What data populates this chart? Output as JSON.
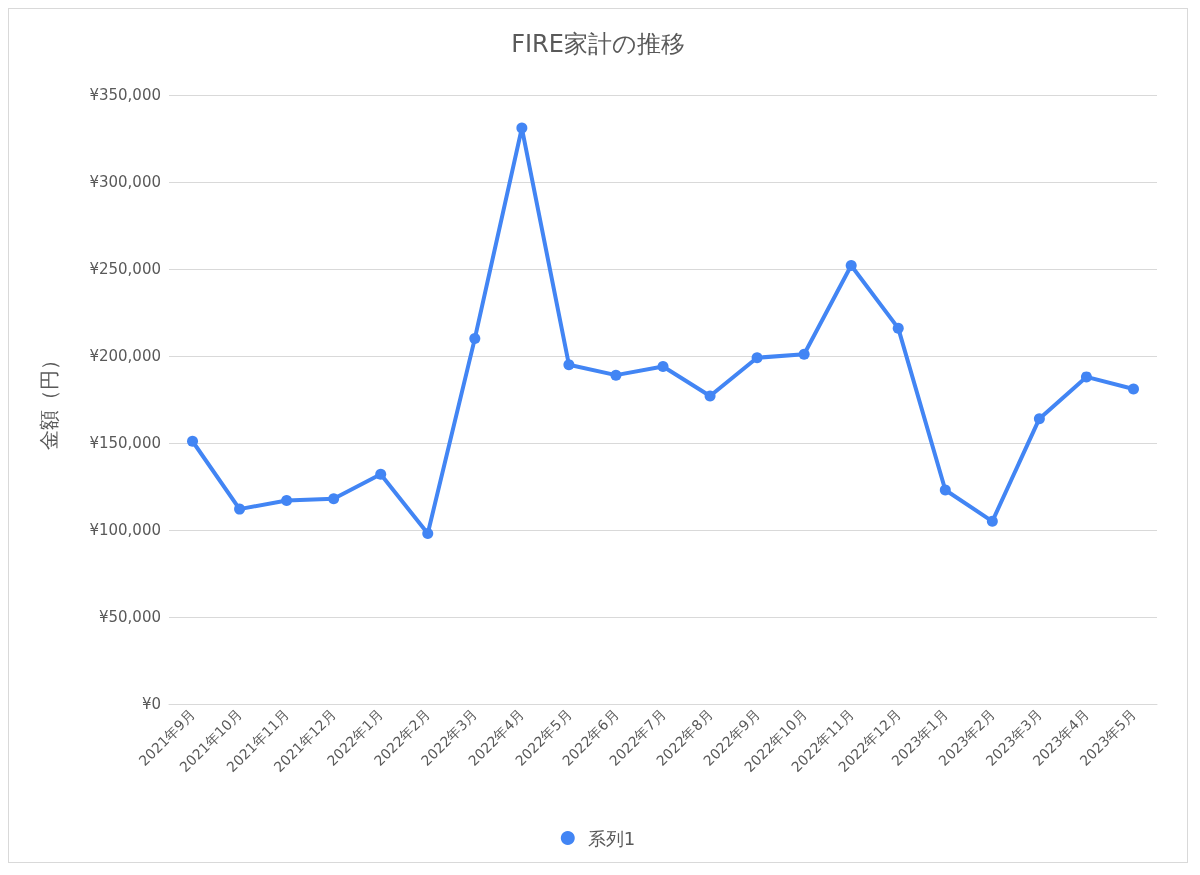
{
  "chart_data": {
    "type": "line",
    "title": "FIRE家計の推移",
    "ylabel": "金額（円）",
    "categories": [
      "2021年9月",
      "2021年10月",
      "2021年11月",
      "2021年12月",
      "2022年1月",
      "2022年2月",
      "2022年3月",
      "2022年4月",
      "2022年5月",
      "2022年6月",
      "2022年7月",
      "2022年8月",
      "2022年9月",
      "2022年10月",
      "2022年11月",
      "2022年12月",
      "2023年1月",
      "2023年2月",
      "2023年3月",
      "2023年4月",
      "2023年5月"
    ],
    "series": [
      {
        "name": "系列1",
        "color": "#4285f4",
        "values": [
          151000,
          112000,
          117000,
          118000,
          132000,
          98000,
          210000,
          331000,
          195000,
          189000,
          194000,
          177000,
          199000,
          201000,
          252000,
          216000,
          123000,
          105000,
          164000,
          188000,
          181000
        ]
      }
    ],
    "ylim": [
      0,
      350000
    ],
    "yticks": [
      {
        "value": 0,
        "label": "¥0"
      },
      {
        "value": 50000,
        "label": "¥50,000"
      },
      {
        "value": 100000,
        "label": "¥100,000"
      },
      {
        "value": 150000,
        "label": "¥150,000"
      },
      {
        "value": 200000,
        "label": "¥200,000"
      },
      {
        "value": 250000,
        "label": "¥250,000"
      },
      {
        "value": 300000,
        "label": "¥300,000"
      },
      {
        "value": 350000,
        "label": "¥350,000"
      }
    ],
    "grid": "y",
    "legend": "bottom",
    "marker": "circle",
    "line_style": "solid"
  }
}
